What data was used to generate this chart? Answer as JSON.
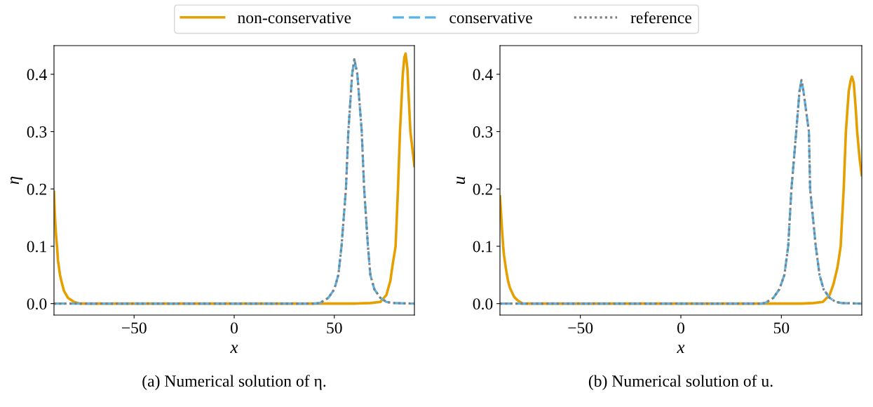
{
  "chart_data": [
    {
      "type": "line",
      "xlabel": "x",
      "ylabel": "η",
      "xlim": [
        -90,
        90
      ],
      "ylim": [
        -0.02,
        0.45
      ],
      "xticks": [
        {
          "value": -50,
          "label": "−50"
        },
        0,
        50
      ],
      "yticks": [
        {
          "value": 0,
          "label": "0.0"
        },
        0.1,
        0.2,
        0.3,
        0.4
      ],
      "legend": "top",
      "grid": false,
      "annotations": [
        "(a) Numerical solution of η."
      ],
      "series": [
        {
          "name": "non-conservative",
          "color": "#e69f00",
          "line_style": "solid",
          "x": [
            -90,
            -89.5,
            -89,
            -88.5,
            -88,
            -87,
            -86,
            -85,
            -83,
            -80,
            -77,
            -70,
            0,
            60,
            68,
            73,
            76,
            78,
            79,
            80.6,
            81.8,
            82.8,
            84.2,
            85,
            85.6,
            86.5,
            87,
            88,
            89,
            90
          ],
          "values": [
            0.195,
            0.15,
            0.12,
            0.1,
            0.075,
            0.05,
            0.035,
            0.022,
            0.01,
            0.003,
            0.0,
            0.0,
            0.0,
            0.0,
            0.001,
            0.003,
            0.015,
            0.04,
            0.065,
            0.1,
            0.2,
            0.3,
            0.4,
            0.43,
            0.436,
            0.41,
            0.37,
            0.3,
            0.27,
            0.24
          ]
        },
        {
          "name": "conservative",
          "color": "#56b4e9",
          "line_style": "dashed",
          "x": [
            -90,
            40,
            42.8,
            47,
            50,
            52,
            53.6,
            55.8,
            57,
            58.9,
            60,
            61.5,
            63.7,
            64.9,
            66.8,
            68,
            70,
            73,
            76,
            79,
            90
          ],
          "values": [
            0.0,
            0.0,
            0.001,
            0.01,
            0.025,
            0.05,
            0.1,
            0.2,
            0.3,
            0.4,
            0.426,
            0.4,
            0.3,
            0.2,
            0.1,
            0.05,
            0.025,
            0.01,
            0.003,
            0.001,
            0.0
          ]
        },
        {
          "name": "reference",
          "color": "#808080",
          "line_style": "dotted",
          "x": [
            -90,
            40,
            42.8,
            47,
            50,
            52,
            53.6,
            55.8,
            57,
            58.9,
            60,
            61.5,
            63.7,
            64.9,
            66.8,
            68,
            70,
            73,
            76,
            79,
            90
          ],
          "values": [
            0.0,
            0.0,
            0.001,
            0.01,
            0.025,
            0.05,
            0.1,
            0.2,
            0.3,
            0.4,
            0.426,
            0.4,
            0.3,
            0.2,
            0.1,
            0.05,
            0.025,
            0.01,
            0.003,
            0.001,
            0.0
          ]
        }
      ]
    },
    {
      "type": "line",
      "xlabel": "x",
      "ylabel": "u",
      "xlim": [
        -90,
        90
      ],
      "ylim": [
        -0.02,
        0.45
      ],
      "xticks": [
        {
          "value": -50,
          "label": "−50"
        },
        0,
        50
      ],
      "yticks": [
        {
          "value": 0,
          "label": "0.0"
        },
        0.1,
        0.2,
        0.3,
        0.4
      ],
      "grid": false,
      "annotations": [
        "(b) Numerical solution of u."
      ],
      "series": [
        {
          "color": "#e69f00",
          "line_style": "solid",
          "x": [
            -90,
            -89.5,
            -89,
            -88.4,
            -88,
            -87,
            -86,
            -85,
            -83,
            -81,
            -78.7,
            -70,
            0,
            60,
            66,
            70.6,
            74,
            76,
            78,
            79.5,
            81,
            82.1,
            83.5,
            84.5,
            85.1,
            86,
            87,
            87.7,
            89,
            90
          ],
          "values": [
            0.187,
            0.16,
            0.13,
            0.1,
            0.085,
            0.06,
            0.04,
            0.027,
            0.012,
            0.005,
            0.0,
            0.0,
            0.0,
            0.0,
            0.001,
            0.003,
            0.015,
            0.035,
            0.065,
            0.1,
            0.2,
            0.3,
            0.37,
            0.39,
            0.396,
            0.385,
            0.34,
            0.3,
            0.25,
            0.224
          ]
        },
        {
          "color": "#56b4e9",
          "line_style": "dashed",
          "x": [
            -90,
            40,
            41.9,
            46,
            49,
            51.5,
            53.4,
            55,
            57.4,
            59,
            60,
            61,
            63.7,
            64.3,
            67.1,
            69,
            71,
            74,
            77,
            80,
            90
          ],
          "values": [
            0.0,
            0.0,
            0.001,
            0.01,
            0.025,
            0.05,
            0.1,
            0.2,
            0.3,
            0.37,
            0.39,
            0.37,
            0.3,
            0.2,
            0.1,
            0.05,
            0.025,
            0.01,
            0.003,
            0.001,
            0.0
          ]
        },
        {
          "color": "#808080",
          "line_style": "dotted",
          "x": [
            -90,
            40,
            41.9,
            46,
            49,
            51.5,
            53.4,
            55,
            57.4,
            59,
            60,
            61,
            63.7,
            64.3,
            67.1,
            69,
            71,
            74,
            77,
            80,
            90
          ],
          "values": [
            0.0,
            0.0,
            0.001,
            0.01,
            0.025,
            0.05,
            0.1,
            0.2,
            0.3,
            0.37,
            0.39,
            0.37,
            0.3,
            0.2,
            0.1,
            0.05,
            0.025,
            0.01,
            0.003,
            0.001,
            0.0
          ]
        }
      ]
    }
  ]
}
